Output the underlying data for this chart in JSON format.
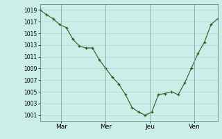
{
  "background_color": "#cceee8",
  "plot_bg_color": "#cceee8",
  "grid_color": "#aacccc",
  "line_color": "#2d5a1e",
  "marker_color": "#2d5a1e",
  "ylim": [
    1000,
    1020
  ],
  "yticks": [
    1001,
    1003,
    1005,
    1007,
    1009,
    1011,
    1013,
    1015,
    1017,
    1019
  ],
  "day_labels": [
    "Mar",
    "Mer",
    "Jeu",
    "Ven"
  ],
  "day_positions": [
    0.12,
    0.37,
    0.62,
    0.87
  ],
  "vline_positions": [
    0.12,
    0.37,
    0.62,
    0.87
  ],
  "x_values": [
    0,
    1,
    2,
    3,
    4,
    5,
    6,
    7,
    8,
    9,
    10,
    11,
    12,
    13,
    14,
    15,
    16,
    17,
    18,
    19,
    20,
    21,
    22,
    23,
    24,
    25,
    26,
    27
  ],
  "y_values": [
    1019,
    1018.2,
    1017.5,
    1016.5,
    1016.0,
    1014.0,
    1012.8,
    1012.5,
    1012.5,
    1010.5,
    1009.0,
    1007.5,
    1006.3,
    1004.5,
    1002.3,
    1001.5,
    1001.0,
    1001.5,
    1004.5,
    1004.7,
    1005.0,
    1004.5,
    1006.5,
    1009.0,
    1011.5,
    1013.5,
    1016.5,
    1017.5
  ]
}
